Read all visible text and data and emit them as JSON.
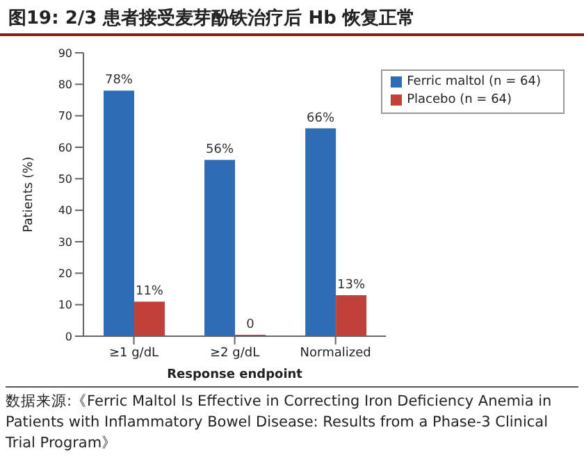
{
  "chart_data": {
    "type": "bar",
    "title": "图19:  2/3 患者接受麦芽酚铁治疗后 Hb 恢复正常",
    "xlabel": "Response endpoint",
    "ylabel": "Patients (%)",
    "categories": [
      "≥1 g/dL",
      "≥2 g/dL",
      "Normalized"
    ],
    "series": [
      {
        "name": "Ferric maltol (n = 64)",
        "color": "#2e6db6",
        "values": [
          78,
          56,
          66
        ],
        "value_labels": [
          "78%",
          "56%",
          "66%"
        ]
      },
      {
        "name": "Placebo (n = 64)",
        "color": "#c0403a",
        "values": [
          11,
          0,
          13
        ],
        "value_labels": [
          "11%",
          "0",
          "13%"
        ]
      }
    ],
    "ylim": [
      0,
      90
    ],
    "yticks": [
      0,
      10,
      20,
      30,
      40,
      50,
      60,
      70,
      80,
      90
    ],
    "legend": "top right",
    "annotations": [
      "数据来源:《Ferric Maltol Is Effective in Correcting Iron Deficiency Anemia in Patients with Inflammatory Bowel Disease: Results from a Phase-3 Clinical Trial Program》"
    ]
  }
}
